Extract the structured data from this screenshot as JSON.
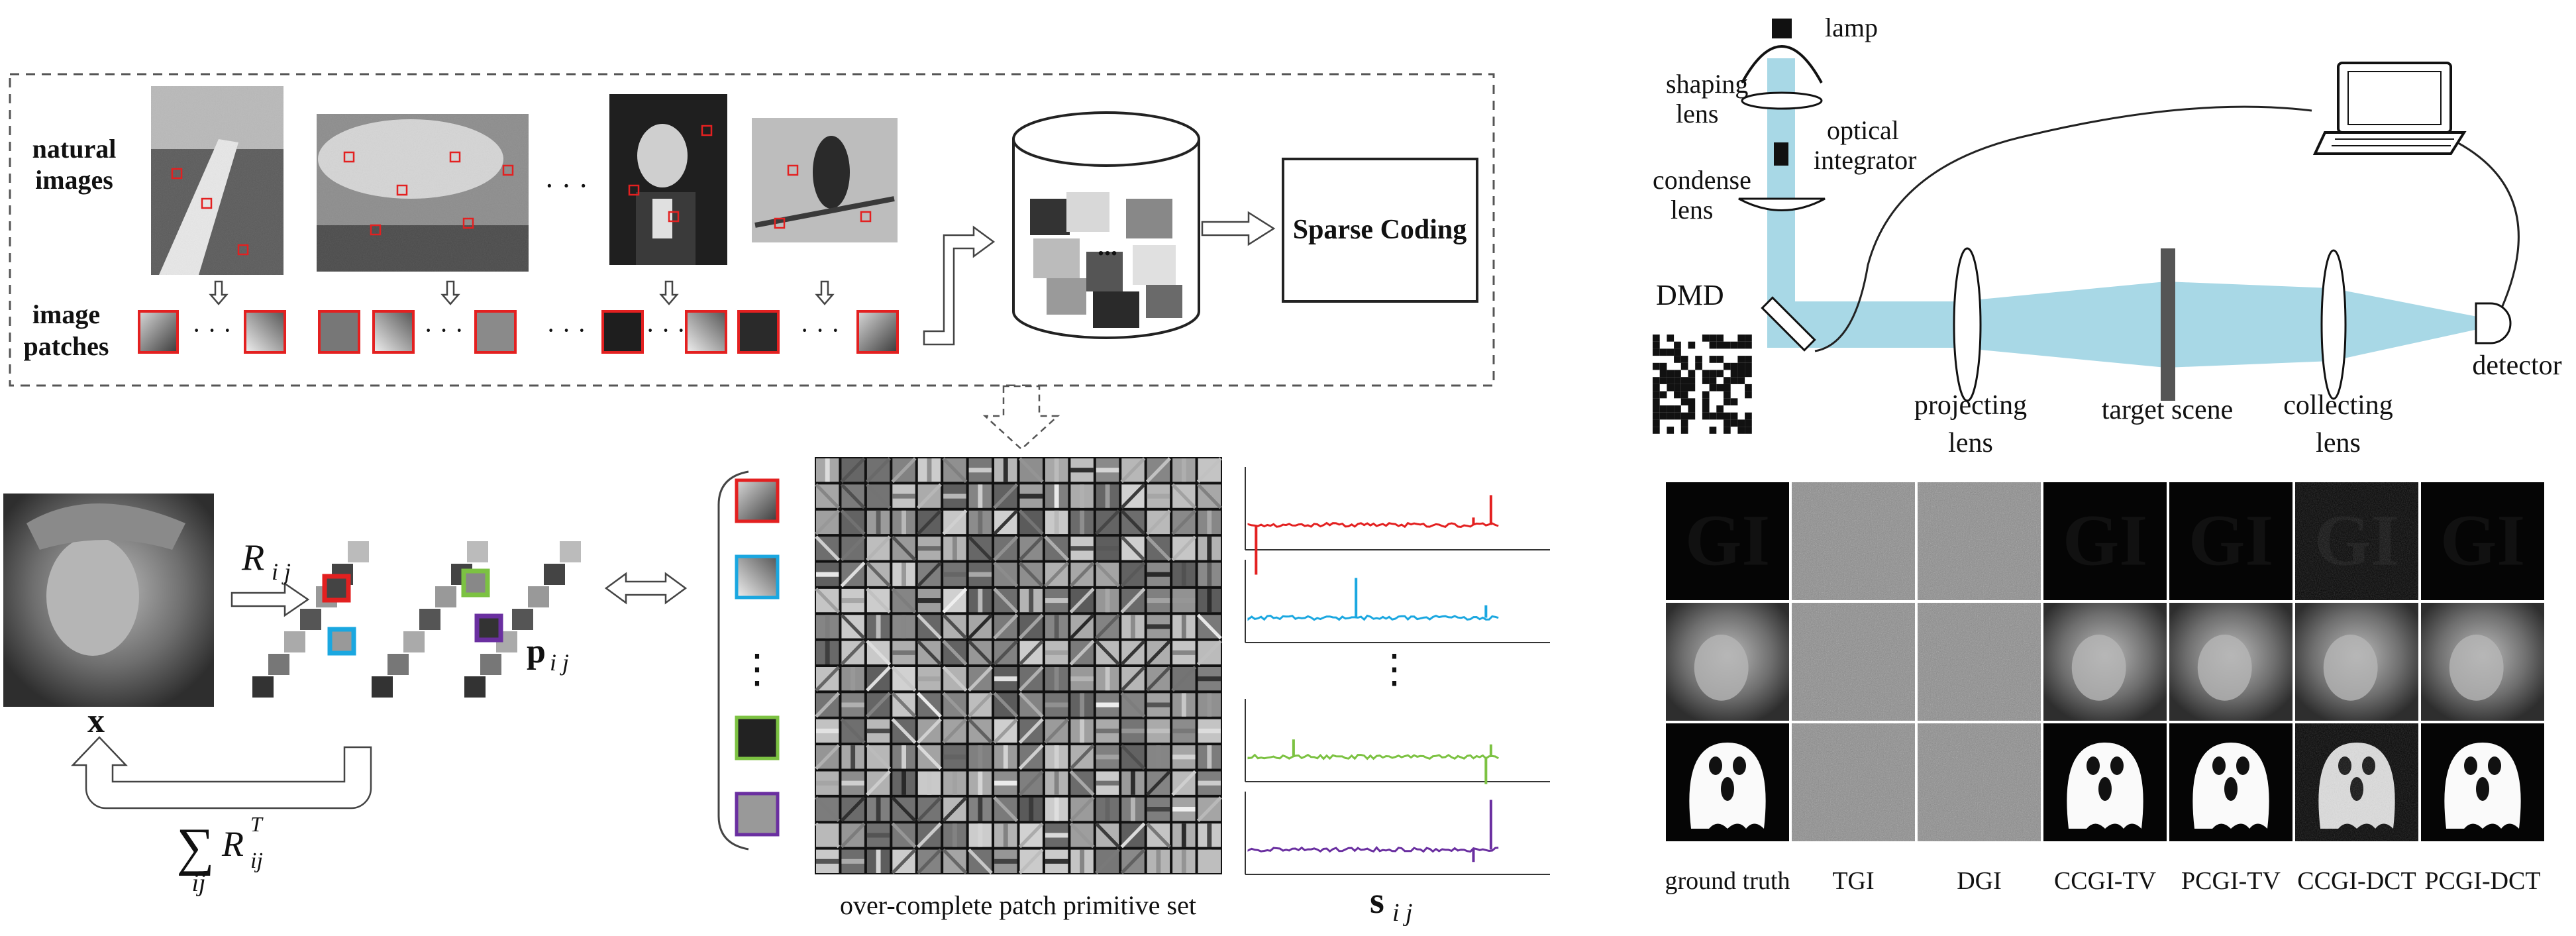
{
  "pipeline": {
    "natural_images_label": [
      "natural",
      "images"
    ],
    "image_patches_label": [
      "image",
      "patches"
    ],
    "ellipsis": "· · ·",
    "mid_ellipsis": "...",
    "sparse_coding_label": "Sparse Coding"
  },
  "decomposition": {
    "x_label": "x",
    "R_label": "R",
    "R_sub": "i j",
    "p_label": "p",
    "p_sub": "i j",
    "sum_symbol": "∑",
    "sum_sub": "ij",
    "RT_label": "R",
    "RT_sup": "T",
    "RT_sub": "ij",
    "dictionary_caption": "over-complete patch primitive set",
    "s_label": "s",
    "s_sub": "i j",
    "vertical_ellipsis": "⋮",
    "colors": {
      "red": "#e32020",
      "cyan": "#1aa7e0",
      "green": "#7cc242",
      "purple": "#6a2fa0"
    }
  },
  "setup": {
    "lamp": "lamp",
    "shaping_lens": [
      "shaping",
      "lens"
    ],
    "optical_integrator": [
      "optical",
      "integrator"
    ],
    "condense_lens": [
      "condense",
      "lens"
    ],
    "dmd": "DMD",
    "projecting_lens": [
      "projecting",
      "lens"
    ],
    "target_scene": "target scene",
    "collecting_lens": [
      "collecting",
      "lens"
    ],
    "detector": "detector",
    "beam_color": "#a8d8e6"
  },
  "results": {
    "columns": [
      "ground truth",
      "TGI",
      "DGI",
      "CCGI-TV",
      "PCGI-TV",
      "CCGI-DCT",
      "PCGI-DCT"
    ],
    "row1_text": "GI"
  }
}
